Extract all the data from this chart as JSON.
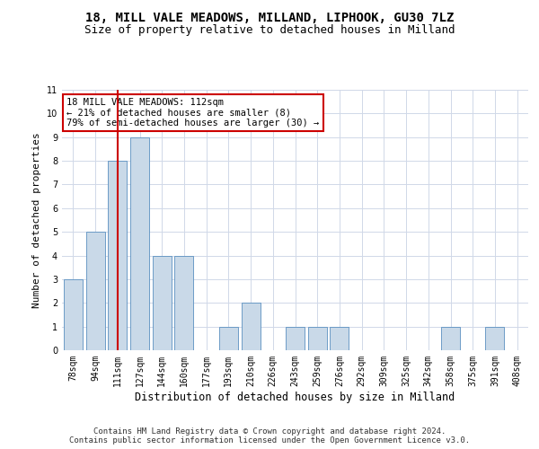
{
  "title1": "18, MILL VALE MEADOWS, MILLAND, LIPHOOK, GU30 7LZ",
  "title2": "Size of property relative to detached houses in Milland",
  "xlabel": "Distribution of detached houses by size in Milland",
  "ylabel": "Number of detached properties",
  "categories": [
    "78sqm",
    "94sqm",
    "111sqm",
    "127sqm",
    "144sqm",
    "160sqm",
    "177sqm",
    "193sqm",
    "210sqm",
    "226sqm",
    "243sqm",
    "259sqm",
    "276sqm",
    "292sqm",
    "309sqm",
    "325sqm",
    "342sqm",
    "358sqm",
    "375sqm",
    "391sqm",
    "408sqm"
  ],
  "values": [
    3,
    5,
    8,
    9,
    4,
    4,
    0,
    1,
    2,
    0,
    1,
    1,
    1,
    0,
    0,
    0,
    0,
    1,
    0,
    1,
    0
  ],
  "bar_color": "#c9d9e8",
  "bar_edgecolor": "#5a8fc0",
  "vline_x_index": 2,
  "vline_color": "#cc0000",
  "annotation_line1": "18 MILL VALE MEADOWS: 112sqm",
  "annotation_line2": "← 21% of detached houses are smaller (8)",
  "annotation_line3": "79% of semi-detached houses are larger (30) →",
  "annotation_box_edgecolor": "#cc0000",
  "ylim": [
    0,
    11
  ],
  "yticks": [
    0,
    1,
    2,
    3,
    4,
    5,
    6,
    7,
    8,
    9,
    10,
    11
  ],
  "footer": "Contains HM Land Registry data © Crown copyright and database right 2024.\nContains public sector information licensed under the Open Government Licence v3.0.",
  "bg_color": "#ffffff",
  "grid_color": "#d0d8e8",
  "title1_fontsize": 10,
  "title2_fontsize": 9,
  "xlabel_fontsize": 8.5,
  "ylabel_fontsize": 8,
  "tick_fontsize": 7,
  "annotation_fontsize": 7.5,
  "footer_fontsize": 6.5
}
